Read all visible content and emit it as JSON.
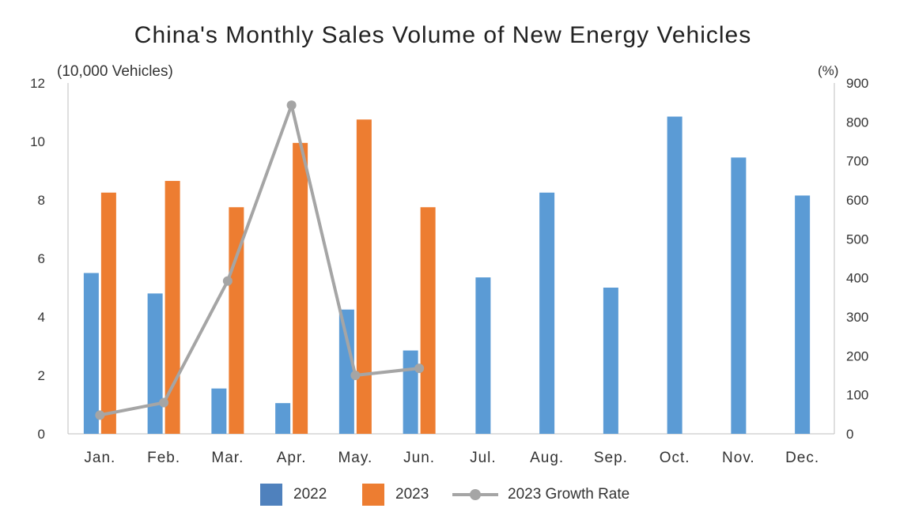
{
  "chart_data": {
    "type": "bar",
    "title": "China's Monthly Sales Volume of New Energy Vehicles",
    "ylabel": "(10,000 Vehicles)",
    "y2label": "(%)",
    "categories": [
      "Jan.",
      "Feb.",
      "Mar.",
      "Apr.",
      "May.",
      "Jun.",
      "Jul.",
      "Aug.",
      "Sep.",
      "Oct.",
      "Nov.",
      "Dec."
    ],
    "ylim": [
      0,
      12
    ],
    "y2lim": [
      0,
      900
    ],
    "yticks": [
      0,
      2,
      4,
      6,
      8,
      10,
      12
    ],
    "y2ticks": [
      0,
      100,
      200,
      300,
      400,
      500,
      600,
      700,
      800,
      900
    ],
    "series": [
      {
        "name": "2022",
        "type": "bar",
        "axis": "left",
        "color": "#5b9bd5",
        "values": [
          5.5,
          4.8,
          1.55,
          1.05,
          4.25,
          2.85,
          5.35,
          8.25,
          5.0,
          10.85,
          9.45,
          8.15
        ]
      },
      {
        "name": "2023",
        "type": "bar",
        "axis": "left",
        "color": "#ed7d31",
        "values": [
          8.25,
          8.65,
          7.75,
          9.95,
          10.75,
          7.75,
          null,
          null,
          null,
          null,
          null,
          null
        ]
      },
      {
        "name": "2023 Growth Rate",
        "type": "line",
        "axis": "right",
        "color": "#a5a5a5",
        "values": [
          48,
          80,
          392,
          843,
          150,
          168,
          null,
          null,
          null,
          null,
          null,
          null
        ]
      }
    ],
    "legend_position": "bottom",
    "grid": false
  }
}
